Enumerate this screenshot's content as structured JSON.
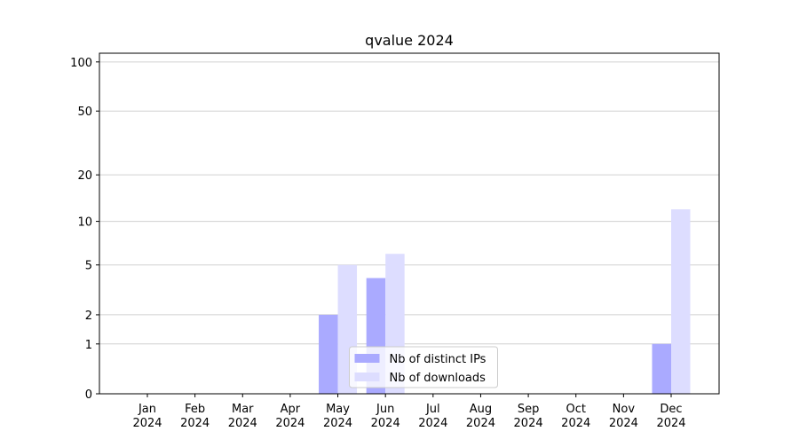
{
  "chart_data": {
    "type": "bar",
    "title": "qvalue 2024",
    "categories": [
      "Jan\n2024",
      "Feb\n2024",
      "Mar\n2024",
      "Apr\n2024",
      "May\n2024",
      "Jun\n2024",
      "Jul\n2024",
      "Aug\n2024",
      "Sep\n2024",
      "Oct\n2024",
      "Nov\n2024",
      "Dec\n2024"
    ],
    "series": [
      {
        "name": "Nb of distinct IPs",
        "color": "#aaaaff",
        "values": [
          0,
          0,
          0,
          0,
          2,
          4,
          0,
          0,
          0,
          0,
          0,
          1
        ]
      },
      {
        "name": "Nb of downloads",
        "color": "#ddddff",
        "values": [
          0,
          0,
          0,
          0,
          5,
          6,
          0,
          0,
          0,
          0,
          0,
          12
        ]
      }
    ],
    "yscale": "log1p",
    "ylim": [
      0,
      113
    ],
    "yticks": [
      0,
      1,
      2,
      5,
      10,
      20,
      50,
      100
    ],
    "grid": true,
    "legend": "lower center"
  }
}
